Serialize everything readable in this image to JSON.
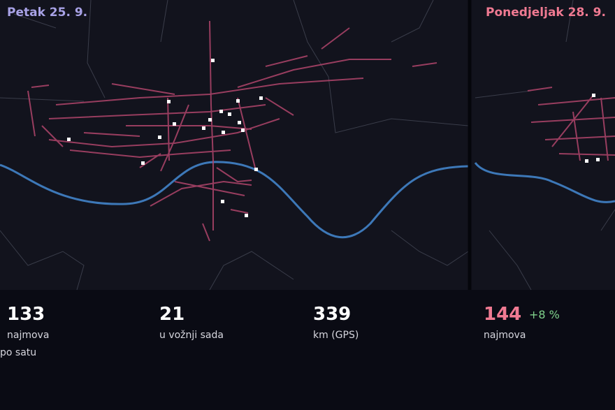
{
  "panels": [
    {
      "title": "Petak 25. 9.",
      "stats": [
        {
          "value": "133",
          "label": [
            "najmova",
            "po satu"
          ]
        },
        {
          "value": "21",
          "label": [
            "u vožnji sada"
          ]
        },
        {
          "value": "339",
          "label": [
            "km (GPS)"
          ]
        }
      ]
    },
    {
      "title": "Ponedjeljak 28. 9.",
      "stats": [
        {
          "value": "144",
          "change": "+8 %",
          "label": [
            "najmova"
          ]
        }
      ]
    }
  ]
}
